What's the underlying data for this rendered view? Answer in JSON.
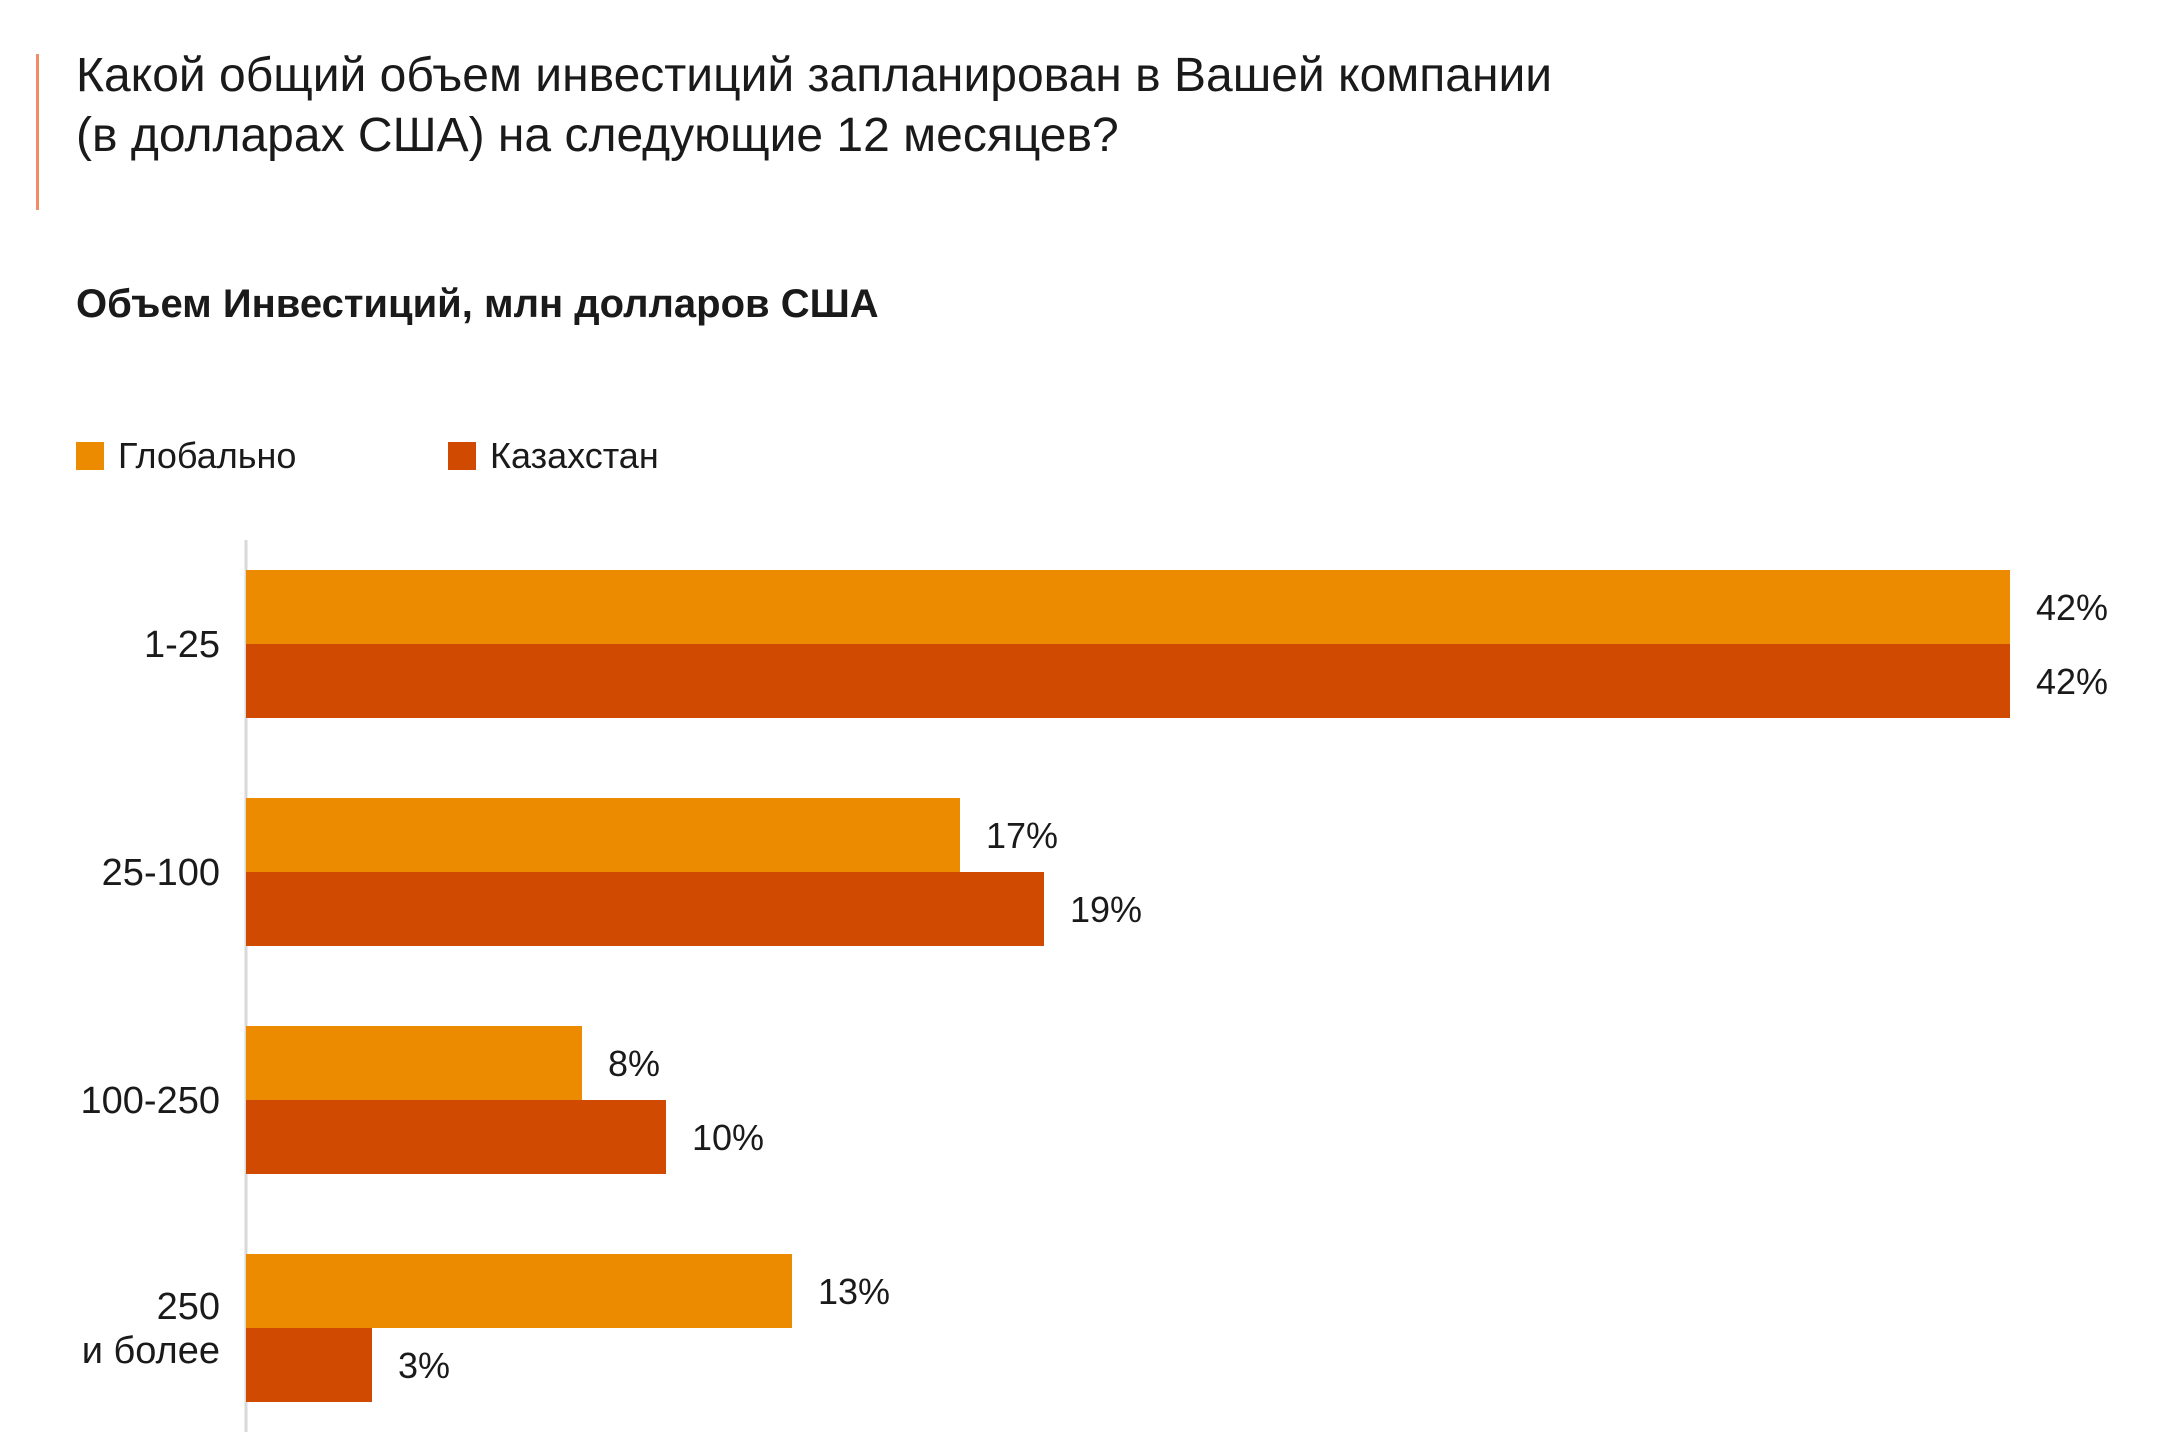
{
  "header": {
    "question_line1": "Какой общий объем инвестиций запланирован в Вашей компании",
    "question_line2": "(в долларах США) на следующие 12 месяцев?"
  },
  "colors": {
    "accent_line": "#f08c6a",
    "global": "#ec8b00",
    "kazakhstan": "#d04a02",
    "axis": "#d9d9d9",
    "text": "#1a1a1a"
  },
  "chart_data": {
    "type": "bar",
    "orientation": "horizontal",
    "title": "Объем Инвестиций, млн долларов США",
    "categories": [
      [
        "1-25"
      ],
      [
        "25-100"
      ],
      [
        "100-250"
      ],
      [
        "250",
        "и более"
      ]
    ],
    "series": [
      {
        "name": "Глобально",
        "color": "#ec8b00",
        "values": [
          42,
          17,
          8,
          13
        ],
        "labels": [
          "42%",
          "17%",
          "8%",
          "13%"
        ]
      },
      {
        "name": "Казахстан",
        "color": "#d04a02",
        "values": [
          42,
          19,
          10,
          3
        ],
        "labels": [
          "42%",
          "19%",
          "10%",
          "3%"
        ]
      }
    ],
    "xlim": [
      0,
      42
    ],
    "unit": "%",
    "grid": false,
    "legend_position": "top-left"
  }
}
